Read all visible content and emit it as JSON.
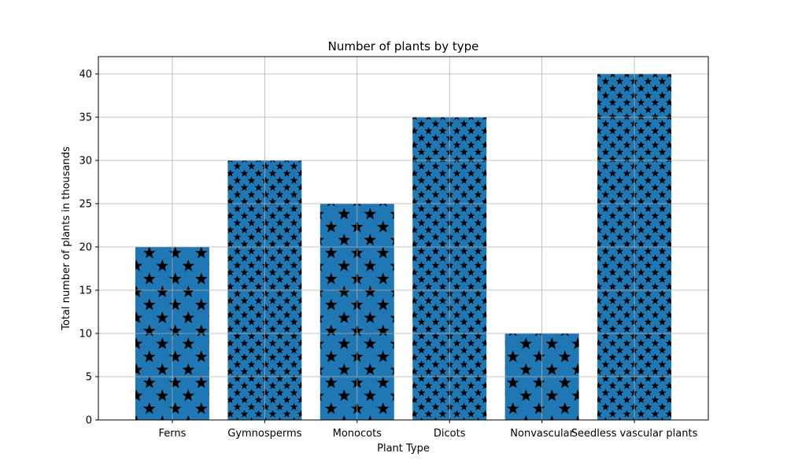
{
  "chart_data": {
    "type": "bar",
    "title": "Number of plants by type",
    "xlabel": "Plant Type",
    "ylabel": "Total number of plants in thousands",
    "categories": [
      "Ferns",
      "Gymnosperms",
      "Monocots",
      "Dicots",
      "Nonvascular",
      "Seedless vascular plants"
    ],
    "values": [
      20,
      30,
      25,
      35,
      10,
      40
    ],
    "hatch": [
      "sparse-star",
      "dense-star",
      "sparse-star",
      "dense-star",
      "sparse-star",
      "dense-star"
    ],
    "ylim": [
      0,
      42
    ],
    "yticks": [
      0,
      5,
      10,
      15,
      20,
      25,
      30,
      35,
      40
    ],
    "grid": true,
    "bar_color": "#1f77b4",
    "hatch_color": "#000000",
    "grid_color": "#b0b0b0"
  }
}
